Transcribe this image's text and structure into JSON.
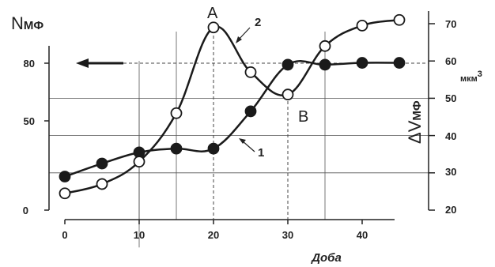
{
  "chart_data": {
    "type": "line",
    "x": [
      0,
      5,
      10,
      15,
      20,
      25,
      30,
      35,
      40,
      45
    ],
    "xlabel": "Доба",
    "x_ticks": [
      "0",
      "10",
      "20",
      "30",
      "40"
    ],
    "left_axis": {
      "label_main": "N",
      "label_sub": "МФ",
      "ticks": [
        "0",
        "50",
        "80"
      ]
    },
    "right_axis": {
      "label_main": "ΔV",
      "label_sub": "МФ",
      "unit": "мкм",
      "unit_sup": "3",
      "ticks": [
        "20",
        "30",
        "40",
        "50",
        "60",
        "70"
      ]
    },
    "xlim": [
      0,
      45
    ],
    "ylim_right": [
      20,
      70
    ],
    "grid": true,
    "series": [
      {
        "name": "1",
        "marker": "filled",
        "axis": "right",
        "values": [
          29,
          32.5,
          35.5,
          36.5,
          36.5,
          46.5,
          59,
          59,
          59.5,
          59.5
        ]
      },
      {
        "name": "2",
        "marker": "open",
        "axis": "right",
        "values": [
          24.5,
          27,
          33,
          46,
          69,
          57,
          51,
          64,
          69.5,
          71
        ]
      }
    ],
    "annotations": {
      "peak": "A",
      "dip": "B"
    },
    "colors": {
      "series1": "#1a1a1a",
      "series2": "#1a1a1a",
      "grid": "#555555",
      "background": "#ffffff"
    }
  }
}
